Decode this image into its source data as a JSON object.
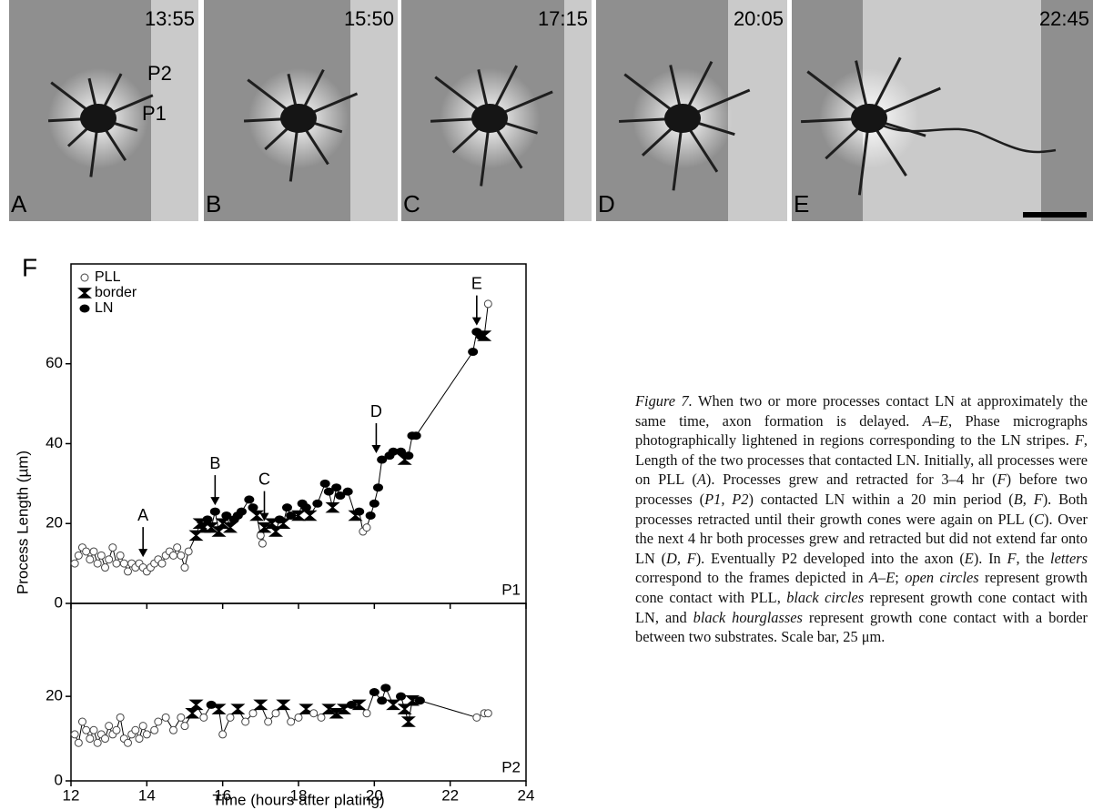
{
  "figure": {
    "panels": [
      {
        "letter": "A",
        "time": "13:55",
        "labels": [
          "P2",
          "P1"
        ]
      },
      {
        "letter": "B",
        "time": "15:50"
      },
      {
        "letter": "C",
        "time": "17:15"
      },
      {
        "letter": "D",
        "time": "20:05"
      },
      {
        "letter": "E",
        "time": "22:45"
      }
    ],
    "panel_label": "F",
    "caption": [
      {
        "text": "Figure 7.",
        "italic": true
      },
      {
        "text": "  When two or more processes contact LN at approximately the same time, axon formation is delayed. "
      },
      {
        "text": "A–E",
        "italic": true
      },
      {
        "text": ", Phase micrographs photographically lightened in regions corresponding to the LN stripes. "
      },
      {
        "text": "F",
        "italic": true
      },
      {
        "text": ", Length of the two processes that contacted LN. Initially, all processes were on PLL ("
      },
      {
        "text": "A",
        "italic": true
      },
      {
        "text": "). Processes grew and retracted for 3–4 hr ("
      },
      {
        "text": "F",
        "italic": true
      },
      {
        "text": ") before two processes ("
      },
      {
        "text": "P1, P2",
        "italic": true
      },
      {
        "text": ") contacted LN within a 20 min period ("
      },
      {
        "text": "B, F",
        "italic": true
      },
      {
        "text": "). Both processes retracted until their growth cones were again on PLL ("
      },
      {
        "text": "C",
        "italic": true
      },
      {
        "text": "). Over the next 4 hr both processes grew and retracted but did not extend far onto LN ("
      },
      {
        "text": "D, F",
        "italic": true
      },
      {
        "text": "). Eventually P2 developed into the axon ("
      },
      {
        "text": "E",
        "italic": true
      },
      {
        "text": "). In "
      },
      {
        "text": "F",
        "italic": true
      },
      {
        "text": ", the "
      },
      {
        "text": "letters",
        "italic": true
      },
      {
        "text": " correspond to the frames depicted in "
      },
      {
        "text": "A–E",
        "italic": true
      },
      {
        "text": "; "
      },
      {
        "text": "open circles",
        "italic": true
      },
      {
        "text": " represent growth cone contact with PLL, "
      },
      {
        "text": "black circles",
        "italic": true
      },
      {
        "text": " represent growth cone contact with LN, and "
      },
      {
        "text": "black hourglasses",
        "italic": true
      },
      {
        "text": " represent growth cone contact with a border between two substrates. Scale bar, 25 μm."
      }
    ]
  },
  "chart_data": [
    {
      "type": "line",
      "label": "P1",
      "ylabel": "Process Length (µm)",
      "legend": [
        "PLL",
        "border",
        "LN"
      ],
      "ylim": [
        0,
        85
      ],
      "yticks": [
        0,
        20,
        40,
        60
      ],
      "xlim": [
        12,
        24
      ],
      "xticks": [
        12,
        14,
        16,
        18,
        20,
        22,
        24
      ],
      "x": [
        12.1,
        12.2,
        12.3,
        12.4,
        12.5,
        12.6,
        12.7,
        12.8,
        12.9,
        13.0,
        13.1,
        13.2,
        13.3,
        13.4,
        13.5,
        13.6,
        13.7,
        13.8,
        13.9,
        14.0,
        14.1,
        14.2,
        14.3,
        14.4,
        14.5,
        14.6,
        14.7,
        14.8,
        14.9,
        15.0,
        15.1,
        15.3,
        15.4,
        15.5,
        15.6,
        15.7,
        15.8,
        15.9,
        16.0,
        16.1,
        16.2,
        16.3,
        16.4,
        16.5,
        16.7,
        16.8,
        16.9,
        17.0,
        17.05,
        17.1,
        17.3,
        17.4,
        17.5,
        17.6,
        17.7,
        17.8,
        18.0,
        18.1,
        18.2,
        18.3,
        18.5,
        18.7,
        18.8,
        18.9,
        19.0,
        19.1,
        19.3,
        19.5,
        19.6,
        19.7,
        19.8,
        19.9,
        20.0,
        20.1,
        20.2,
        20.4,
        20.5,
        20.7,
        20.8,
        20.9,
        21.0,
        21.1,
        22.6,
        22.7,
        22.8,
        22.9,
        23.0
      ],
      "values": [
        10,
        12,
        14,
        13,
        11,
        13,
        10,
        12,
        9,
        11,
        14,
        10,
        12,
        10,
        8,
        10,
        9,
        10,
        9,
        8,
        9,
        10,
        11,
        10,
        12,
        13,
        12,
        14,
        12,
        9,
        13,
        17,
        20,
        19,
        21,
        19,
        23,
        18,
        20,
        22,
        19,
        21,
        22,
        23,
        26,
        24,
        22,
        17,
        15,
        19,
        20,
        18,
        21,
        20,
        24,
        22,
        22,
        25,
        24,
        22,
        25,
        30,
        28,
        24,
        29,
        27,
        28,
        22,
        23,
        18,
        19,
        22,
        25,
        29,
        36,
        37,
        38,
        38,
        36,
        37,
        42,
        42,
        63,
        68,
        67,
        67,
        75
      ],
      "marker": [
        0,
        0,
        0,
        0,
        0,
        0,
        0,
        0,
        0,
        0,
        0,
        0,
        0,
        0,
        0,
        0,
        0,
        0,
        0,
        0,
        0,
        0,
        0,
        0,
        0,
        0,
        0,
        0,
        0,
        0,
        0,
        1,
        1,
        1,
        2,
        1,
        2,
        1,
        1,
        2,
        1,
        2,
        2,
        2,
        2,
        2,
        1,
        0,
        0,
        1,
        1,
        1,
        2,
        1,
        2,
        2,
        1,
        2,
        2,
        1,
        2,
        2,
        2,
        1,
        2,
        2,
        2,
        1,
        2,
        0,
        0,
        2,
        2,
        2,
        2,
        2,
        2,
        2,
        1,
        2,
        2,
        2,
        2,
        2,
        2,
        1,
        0
      ],
      "annotations": [
        {
          "text": "A",
          "x": 13.9,
          "y": 10
        },
        {
          "text": "B",
          "x": 15.8,
          "y": 23
        },
        {
          "text": "C",
          "x": 17.1,
          "y": 19
        },
        {
          "text": "D",
          "x": 20.05,
          "y": 36
        },
        {
          "text": "E",
          "x": 22.7,
          "y": 68
        }
      ]
    },
    {
      "type": "line",
      "label": "P2",
      "xlabel": "Time (hours after plating)",
      "ylim": [
        0,
        42
      ],
      "yticks": [
        0,
        20
      ],
      "xlim": [
        12,
        24
      ],
      "xticks": [
        12,
        14,
        16,
        18,
        20,
        22,
        24
      ],
      "x": [
        12.1,
        12.2,
        12.3,
        12.4,
        12.5,
        12.6,
        12.7,
        12.8,
        12.9,
        13.0,
        13.1,
        13.2,
        13.3,
        13.4,
        13.5,
        13.6,
        13.7,
        13.8,
        13.9,
        14.0,
        14.2,
        14.3,
        14.5,
        14.7,
        14.9,
        15.0,
        15.2,
        15.3,
        15.5,
        15.7,
        15.9,
        16.0,
        16.2,
        16.4,
        16.6,
        16.8,
        17.0,
        17.2,
        17.4,
        17.6,
        17.8,
        18.0,
        18.2,
        18.4,
        18.6,
        18.8,
        19.0,
        19.2,
        19.4,
        19.6,
        19.8,
        20.0,
        20.2,
        20.3,
        20.5,
        20.7,
        20.8,
        20.9,
        21.0,
        21.2,
        22.7,
        22.9,
        23.0
      ],
      "values": [
        11,
        9,
        14,
        12,
        10,
        12,
        9,
        11,
        10,
        13,
        11,
        12,
        15,
        10,
        9,
        11,
        12,
        10,
        13,
        11,
        12,
        14,
        15,
        12,
        15,
        13,
        16,
        18,
        15,
        18,
        17,
        11,
        15,
        17,
        14,
        16,
        18,
        14,
        16,
        18,
        14,
        15,
        17,
        16,
        15,
        17,
        16,
        17,
        18,
        18,
        16,
        21,
        19,
        22,
        18,
        20,
        17,
        14,
        19,
        19,
        15,
        16,
        16
      ],
      "marker": [
        0,
        0,
        0,
        0,
        0,
        0,
        0,
        0,
        0,
        0,
        0,
        0,
        0,
        0,
        0,
        0,
        0,
        0,
        0,
        0,
        0,
        0,
        0,
        0,
        0,
        0,
        1,
        1,
        0,
        2,
        1,
        0,
        0,
        1,
        0,
        0,
        1,
        0,
        0,
        1,
        0,
        0,
        1,
        0,
        0,
        1,
        1,
        1,
        2,
        1,
        0,
        2,
        2,
        2,
        1,
        2,
        1,
        1,
        1,
        2,
        0,
        0,
        0
      ]
    }
  ]
}
